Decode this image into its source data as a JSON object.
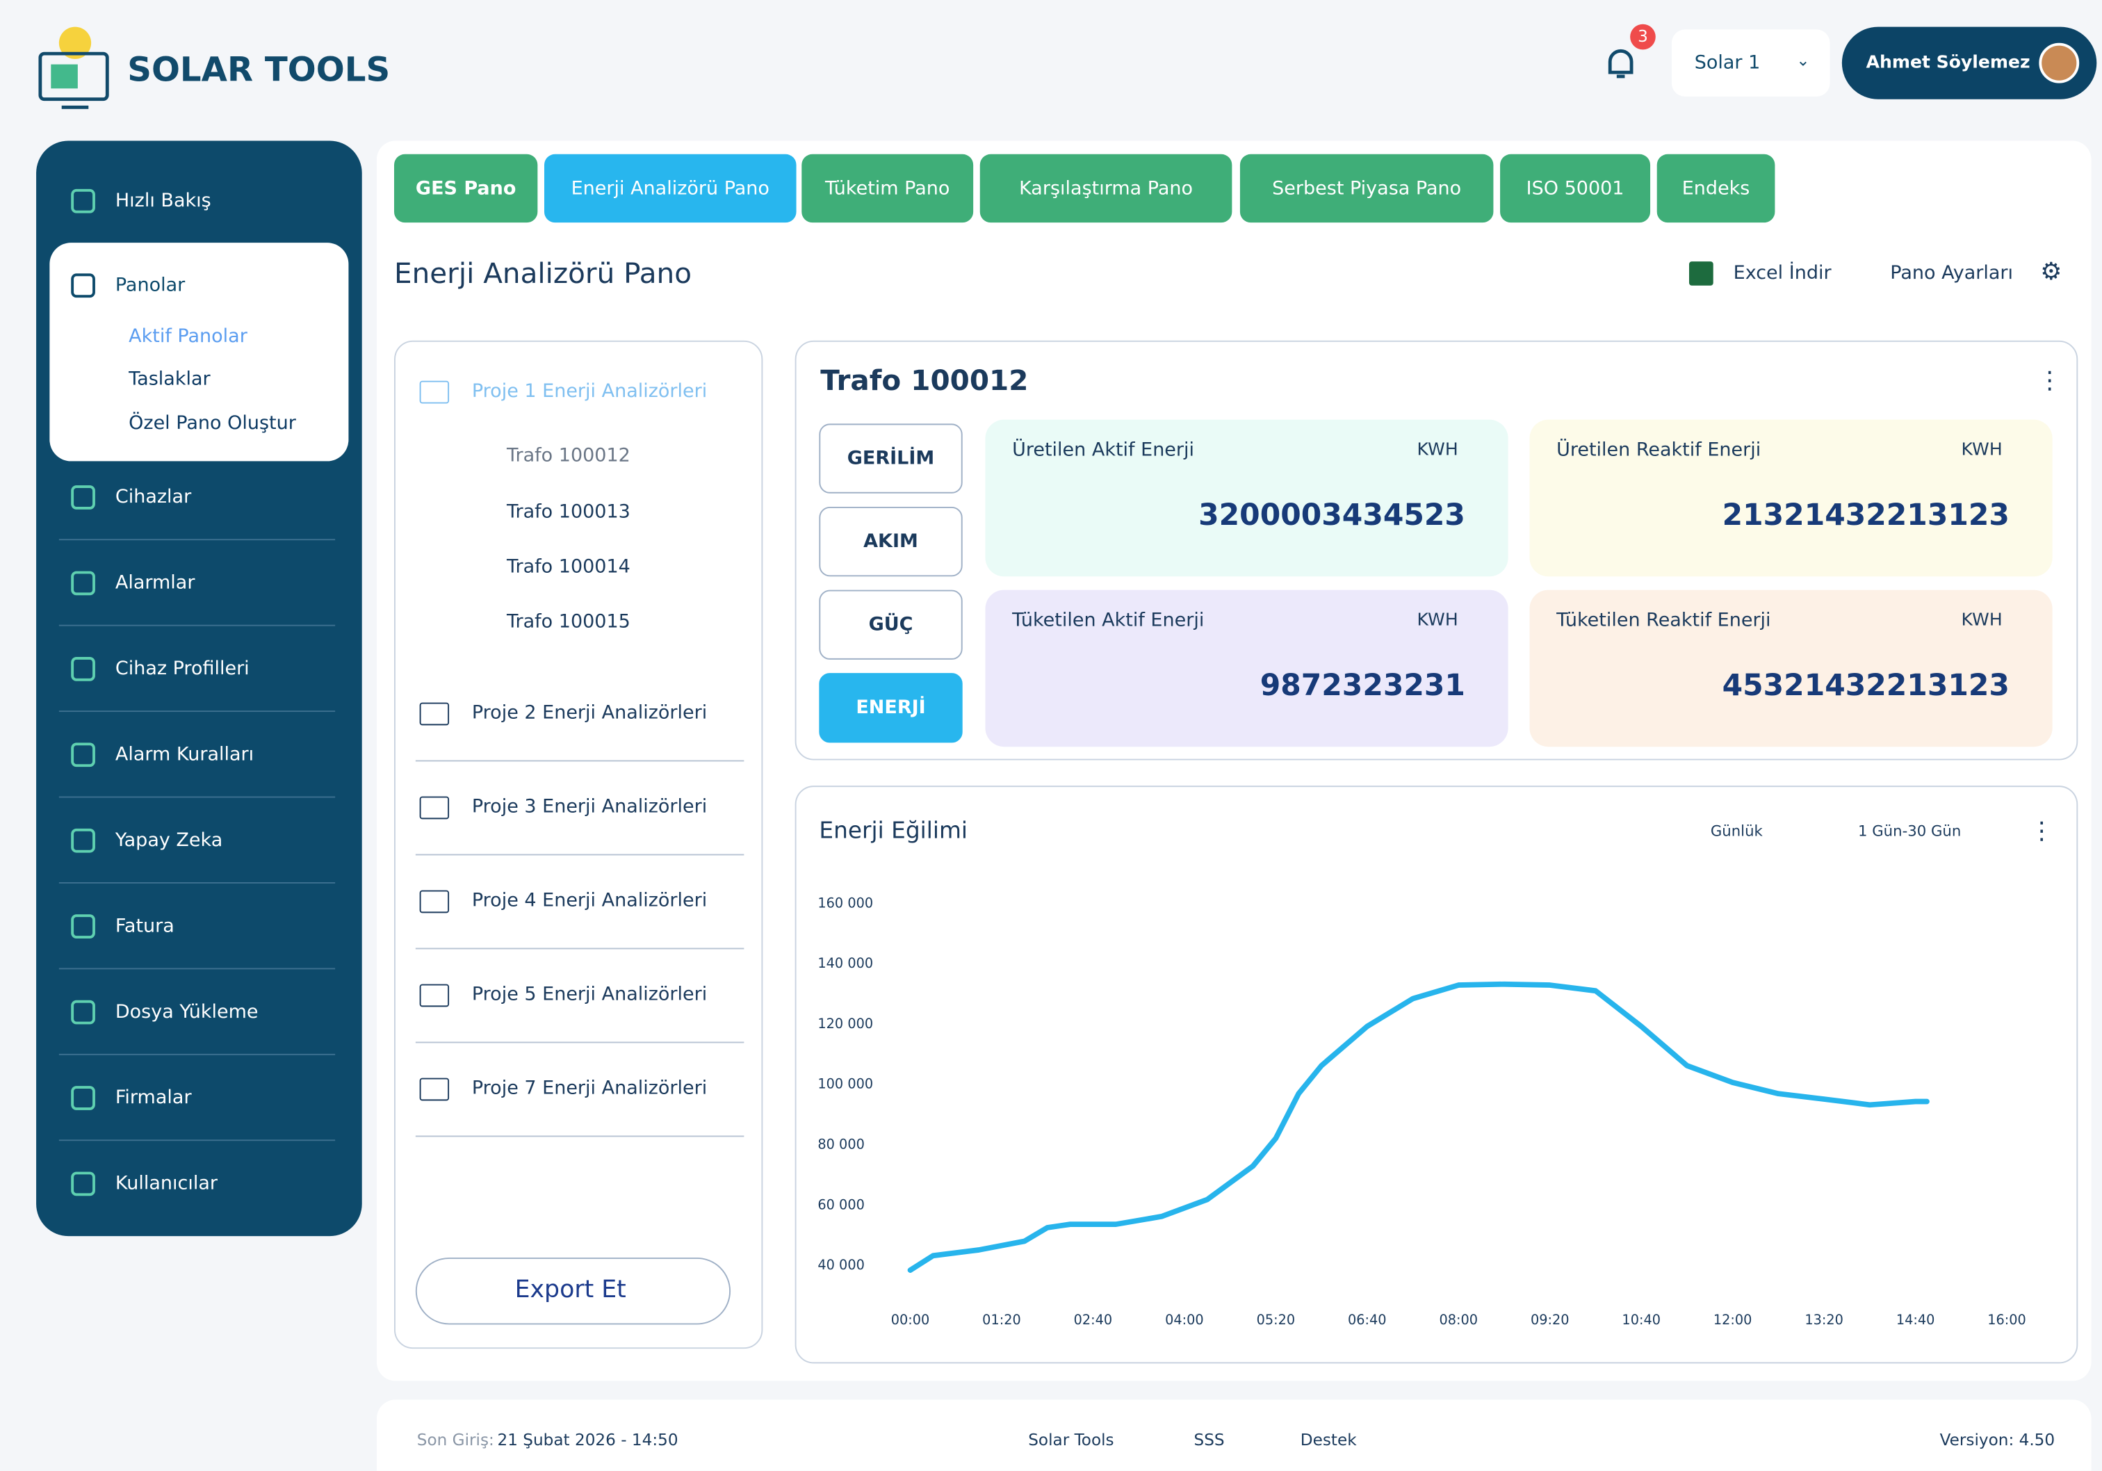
{
  "brand": "SOLAR TOOLS",
  "header": {
    "notifications": "3",
    "site": "Solar 1",
    "user": "Ahmet Söylemez"
  },
  "sidebar": {
    "items": [
      "Hızlı Bakış",
      "Panolar",
      "Cihazlar",
      "Alarmlar",
      "Cihaz Profilleri",
      "Alarm Kuralları",
      "Yapay Zeka",
      "Fatura",
      "Dosya Yükleme",
      "Firmalar",
      "Kullanıcılar"
    ],
    "sub_items": [
      "Aktif Panolar",
      "Taslaklar",
      "Özel Pano Oluştur"
    ]
  },
  "tabs": [
    "GES Pano",
    "Enerji Analizörü Pano",
    "Tüketim Pano",
    "Karşılaştırma Pano",
    "Serbest Piyasa Pano",
    "ISO 50001",
    "Endeks"
  ],
  "page": {
    "title": "Enerji Analizörü Pano",
    "excel": "Excel İndir",
    "settings": "Pano Ayarları"
  },
  "tree": {
    "projects": [
      "Proje 1 Enerji Analizörleri",
      "Proje 2 Enerji Analizörleri",
      "Proje 3 Enerji Analizörleri",
      "Proje 4 Enerji Analizörleri",
      "Proje 5 Enerji Analizörleri",
      "Proje 7 Enerji Analizörleri"
    ],
    "devices": [
      "Trafo 100012",
      "Trafo 100013",
      "Trafo 100014",
      "Trafo 100015"
    ],
    "export": "Export Et"
  },
  "card": {
    "title": "Trafo 100012",
    "buttons": [
      "GERİLİM",
      "AKIM",
      "GÜÇ",
      "ENERJİ"
    ],
    "metrics": [
      {
        "label": "Üretilen Aktif Enerji",
        "unit": "KWH",
        "value": "3200003434523"
      },
      {
        "label": "Üretilen Reaktif Enerji",
        "unit": "KWH",
        "value": "21321432213123"
      },
      {
        "label": "Tüketilen Aktif Enerji",
        "unit": "KWH",
        "value": "9872323231"
      },
      {
        "label": "Tüketilen Reaktif Enerji",
        "unit": "KWH",
        "value": "45321432213123"
      }
    ]
  },
  "chart_data": {
    "type": "line",
    "title": "Enerji Eğilimi",
    "filters": [
      "Günlük",
      "1 Gün-30 Gün"
    ],
    "x": [
      0,
      20,
      60,
      100,
      120,
      140,
      180,
      220,
      260,
      300,
      320,
      340,
      360,
      400,
      440,
      480,
      520,
      560,
      600,
      640,
      680,
      720,
      760,
      800,
      840,
      880,
      890
    ],
    "series": [
      {
        "color": "#27b4ec",
        "values": [
          38500,
          43300,
          45200,
          48100,
          52600,
          53700,
          53700,
          56300,
          61900,
          73000,
          82200,
          97000,
          106300,
          119300,
          128500,
          133000,
          133300,
          133000,
          131100,
          119300,
          106300,
          100700,
          97000,
          95200,
          93300,
          94400,
          94400
        ]
      }
    ],
    "xlim": [
      0,
      960
    ],
    "ylim": [
      40000,
      160000
    ],
    "xticks": [
      {
        "value": 0,
        "label": "00:00"
      },
      {
        "value": 80,
        "label": "01:20"
      },
      {
        "value": 160,
        "label": "02:40"
      },
      {
        "value": 240,
        "label": "04:00"
      },
      {
        "value": 320,
        "label": "05:20"
      },
      {
        "value": 400,
        "label": "06:40"
      },
      {
        "value": 480,
        "label": "08:00"
      },
      {
        "value": 560,
        "label": "09:20"
      },
      {
        "value": 640,
        "label": "10:40"
      },
      {
        "value": 720,
        "label": "12:00"
      },
      {
        "value": 800,
        "label": "13:20"
      },
      {
        "value": 880,
        "label": "14:40"
      },
      {
        "value": 960,
        "label": "16:00"
      }
    ],
    "yticks": [
      {
        "value": 40000,
        "label": "40 000"
      },
      {
        "value": 60000,
        "label": "60 000"
      },
      {
        "value": 80000,
        "label": "80 000"
      },
      {
        "value": 100000,
        "label": "100 000"
      },
      {
        "value": 120000,
        "label": "120 000"
      },
      {
        "value": 140000,
        "label": "140 000"
      },
      {
        "value": 160000,
        "label": "160 000"
      }
    ]
  },
  "footer": {
    "last_login_label": "Son Giriş:",
    "last_login": "21 Şubat 2026 - 14:50",
    "links": [
      "Solar Tools",
      "SSS",
      "Destek"
    ],
    "version": "Versiyon: 4.50"
  }
}
